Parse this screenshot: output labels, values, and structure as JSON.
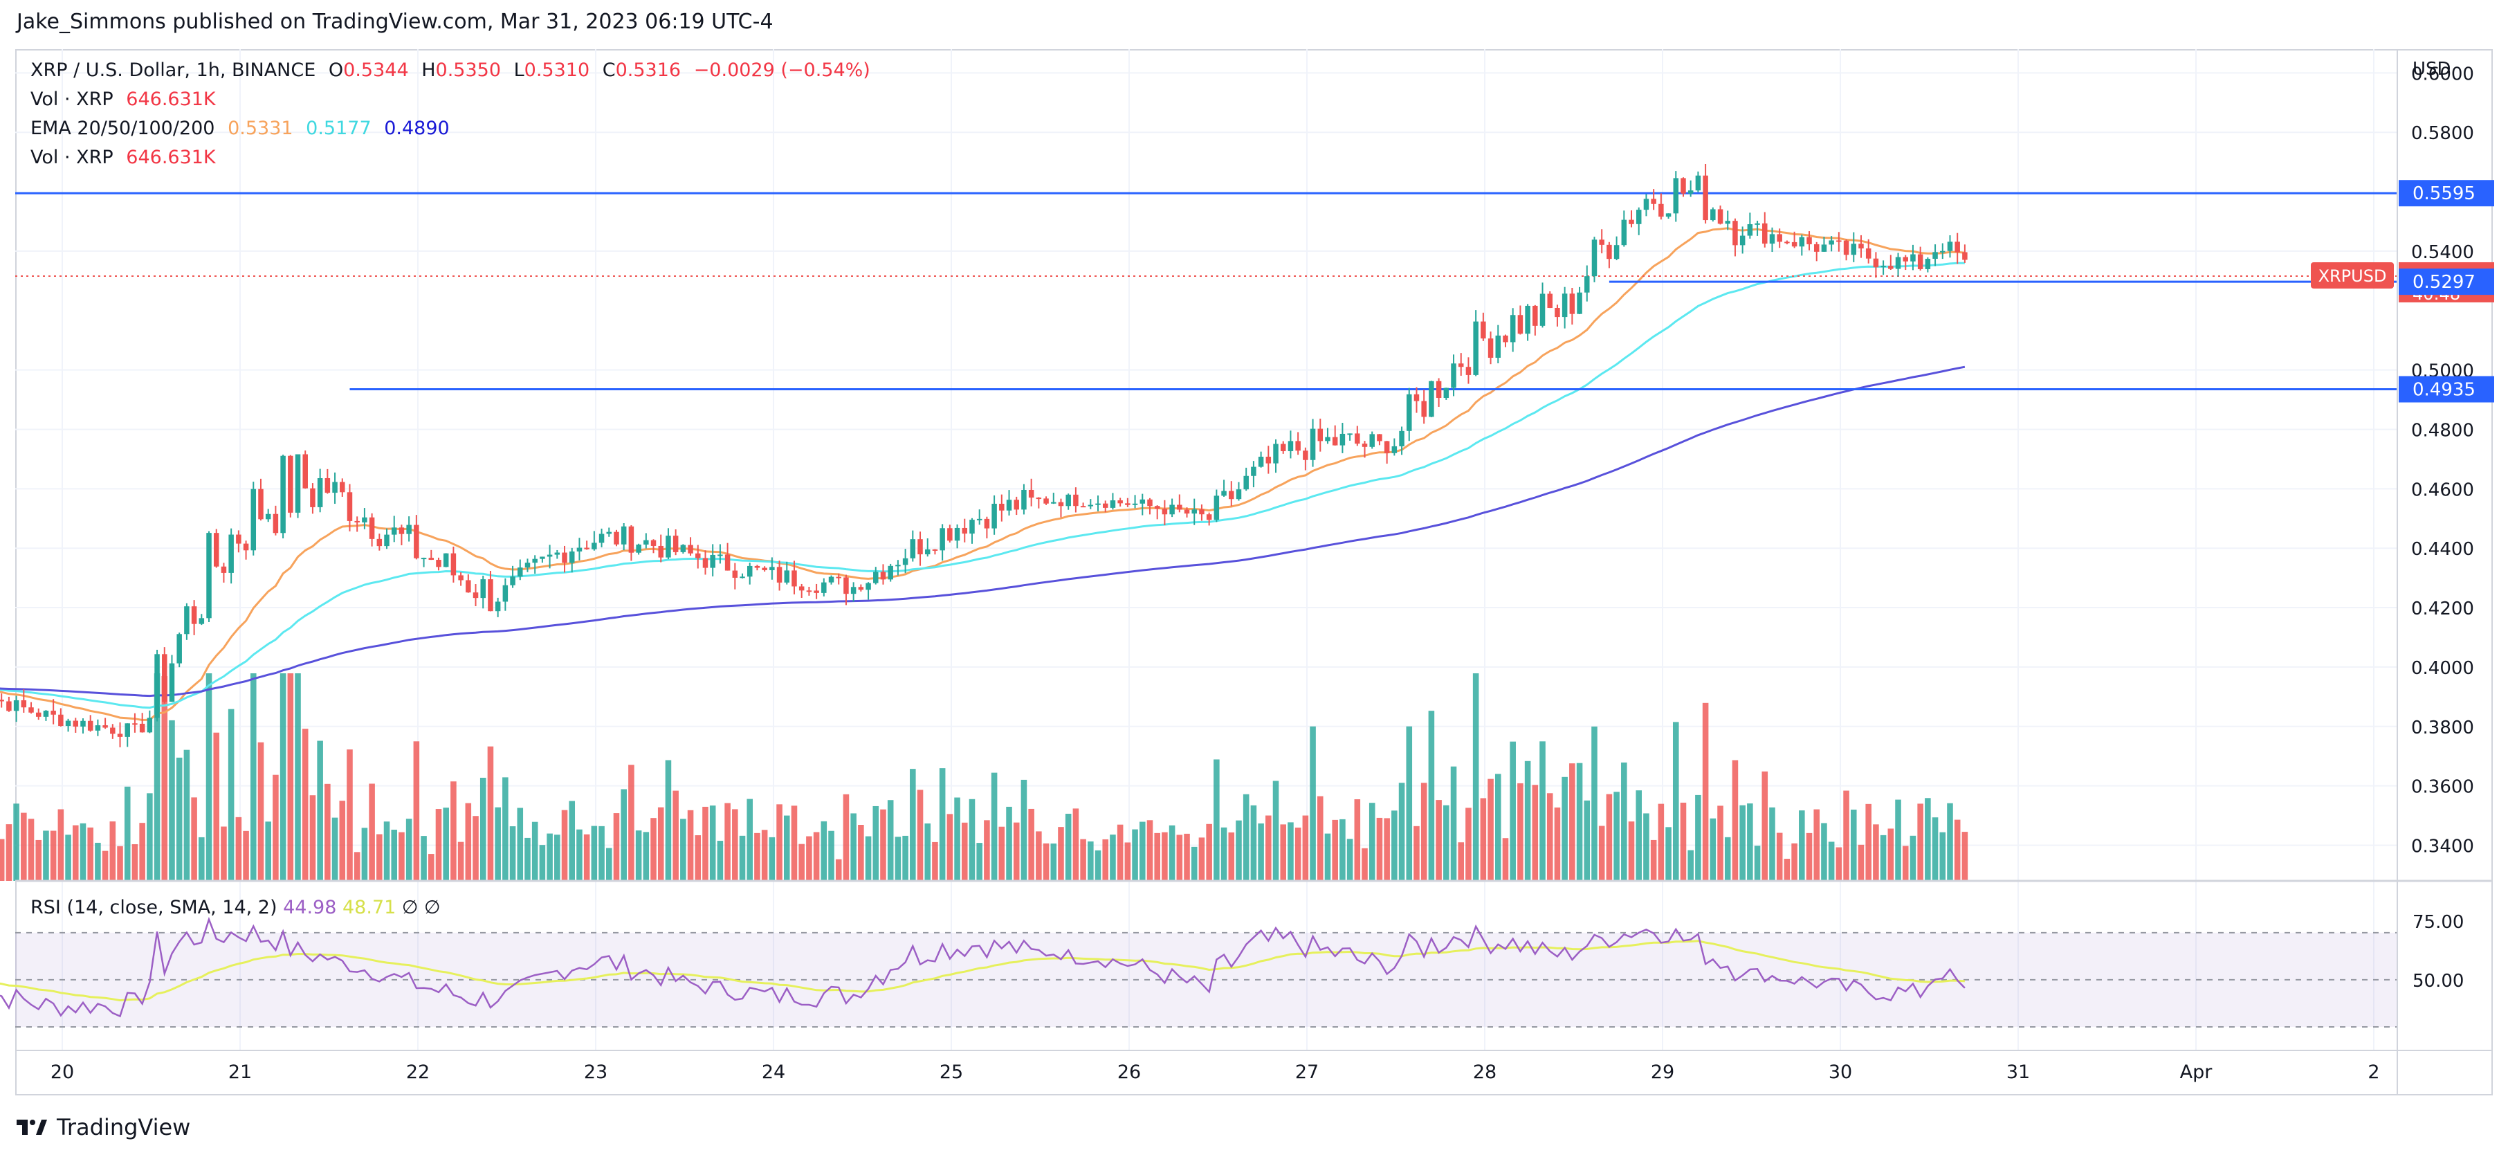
{
  "header": {
    "publisher_line": "Jake_Simmons published on TradingView.com, Mar 31, 2023 06:19 UTC-4"
  },
  "legend": {
    "symbol": "XRP / U.S. Dollar, 1h, BINANCE",
    "open_label": "O",
    "open": "0.5344",
    "high_label": "H",
    "high": "0.5350",
    "low_label": "L",
    "low": "0.5310",
    "close_label": "C",
    "close": "0.5316",
    "change": "−0.0029 (−0.54%)",
    "vol_label": "Vol · XRP",
    "vol_value": "646.631K",
    "ema_label": "EMA 20/50/100/200",
    "ema_values": [
      "0.5331",
      "0.5177",
      "0.4890"
    ],
    "vol2_label": "Vol · XRP",
    "vol2_value": "646.631K"
  },
  "rsi_legend": {
    "label": "RSI (14, close, SMA, 14, 2)",
    "value1": "44.98",
    "value2": "48.71",
    "sym1": "∅",
    "sym2": "∅"
  },
  "footer": {
    "brand": "TradingView"
  },
  "colors": {
    "up": "#26a69a",
    "down": "#ef5350",
    "ema20": "#f7a35c",
    "ema50": "#5ce8f0",
    "ema100": "#5851db",
    "hline": "#2962ff",
    "rsi": "#9c5fc5",
    "rsi_sma": "#e6f05c"
  },
  "chart_data": {
    "type": "candlestick",
    "symbol": "XRPUSD",
    "interval": "1h",
    "currency_label": "USD",
    "price_ticks": [
      "0.6000",
      "0.5800",
      "0.5400",
      "0.5000",
      "0.4800",
      "0.4600",
      "0.4400",
      "0.4200",
      "0.4000",
      "0.3800",
      "0.3600",
      "0.3400"
    ],
    "price_range": [
      0.328,
      0.608
    ],
    "x_ticks": [
      "20",
      "21",
      "22",
      "23",
      "24",
      "25",
      "26",
      "27",
      "28",
      "29",
      "30",
      "31",
      "Apr",
      "2"
    ],
    "horizontal_lines": [
      0.5595,
      0.5297,
      0.4935
    ],
    "price_labels": [
      {
        "value": "0.5595",
        "kind": "hline"
      },
      {
        "value": "0.5316",
        "kind": "last",
        "symbol": "XRPUSD",
        "countdown": "40:48"
      },
      {
        "value": "0.5297",
        "kind": "hline"
      },
      {
        "value": "0.4935",
        "kind": "hline"
      }
    ],
    "daily_ohlc_approx": [
      {
        "day": "20",
        "o": 0.393,
        "h": 0.395,
        "l": 0.373,
        "c": 0.378
      },
      {
        "day": "21",
        "o": 0.378,
        "h": 0.493,
        "l": 0.376,
        "c": 0.462
      },
      {
        "day": "22",
        "o": 0.462,
        "h": 0.472,
        "l": 0.411,
        "c": 0.423
      },
      {
        "day": "23",
        "o": 0.423,
        "h": 0.456,
        "l": 0.42,
        "c": 0.439
      },
      {
        "day": "24",
        "o": 0.439,
        "h": 0.447,
        "l": 0.417,
        "c": 0.427
      },
      {
        "day": "25",
        "o": 0.427,
        "h": 0.464,
        "l": 0.424,
        "c": 0.456
      },
      {
        "day": "26",
        "o": 0.456,
        "h": 0.464,
        "l": 0.445,
        "c": 0.45
      },
      {
        "day": "27",
        "o": 0.45,
        "h": 0.491,
        "l": 0.447,
        "c": 0.473
      },
      {
        "day": "28",
        "o": 0.473,
        "h": 0.538,
        "l": 0.47,
        "c": 0.52
      },
      {
        "day": "29",
        "o": 0.52,
        "h": 0.584,
        "l": 0.515,
        "c": 0.548
      },
      {
        "day": "30",
        "o": 0.548,
        "h": 0.556,
        "l": 0.526,
        "c": 0.535
      },
      {
        "day": "31",
        "o": 0.535,
        "h": 0.548,
        "l": 0.529,
        "c": 0.5316
      }
    ],
    "ema_last": {
      "ema20": 0.5331,
      "ema50": 0.5177,
      "ema100": 0.489
    },
    "rsi": {
      "ticks": [
        "75.00",
        "50.00"
      ],
      "range": [
        20,
        92
      ],
      "last": 44.98,
      "sma_last": 48.71
    }
  }
}
